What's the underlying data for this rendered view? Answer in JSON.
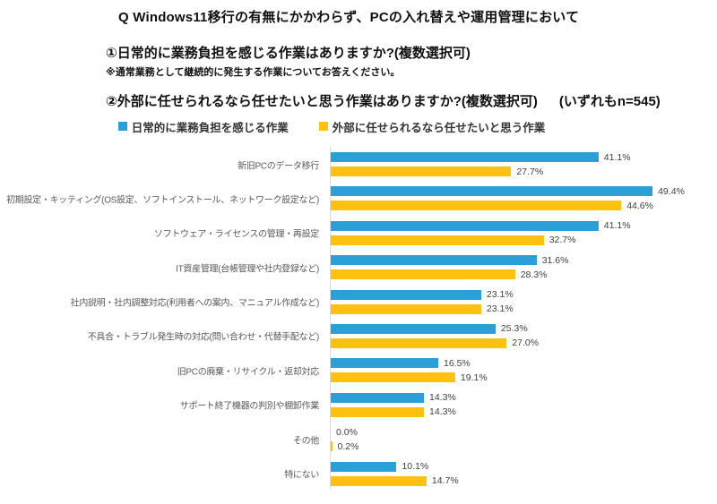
{
  "header": {
    "title": "Q Windows11移行の有無にかかわらず、PCの入れ替えや運用管理において",
    "question1": "①日常的に業務負担を感じる作業はありますか?(複数選択可)",
    "question1_note": "※通常業務として継続的に発生する作業についてお答えください。",
    "question2": "②外部に任せられるなら任せたいと思う作業はありますか?(複数選択可)",
    "sample_note": "(いずれもn=545)"
  },
  "colors": {
    "series1": "#2B9FD8",
    "series2": "#FFC110",
    "axis": "#D9D9D9",
    "category_label": "#595959",
    "value_label": "#404040"
  },
  "chart_data": {
    "type": "bar",
    "orientation": "horizontal",
    "unit": "%",
    "xlim": [
      0,
      55
    ],
    "grid": false,
    "legend_position": "top",
    "categories": [
      "新旧PCのデータ移行",
      "初期設定・キッティング(OS設定、ソフトインストール、ネットワーク設定など)",
      "ソフトウェア・ライセンスの管理・再設定",
      "IT資産管理(台帳管理や社内登録など)",
      "社内説明・社内調整対応(利用者への案内、マニュアル作成など)",
      "不具合・トラブル発生時の対応(問い合わせ・代替手配など)",
      "旧PCの廃棄・リサイクル・返却対応",
      "サポート終了機器の判別や棚卸作業",
      "その他",
      "特にない"
    ],
    "series": [
      {
        "name": "日常的に業務負担を感じる作業",
        "color": "#2B9FD8",
        "values": [
          41.1,
          49.4,
          41.1,
          31.6,
          23.1,
          25.3,
          16.5,
          14.3,
          0.0,
          10.1
        ]
      },
      {
        "name": "外部に任せられるなら任せたいと思う作業",
        "color": "#FFC110",
        "values": [
          27.7,
          44.6,
          32.7,
          28.3,
          23.1,
          27.0,
          19.1,
          14.3,
          0.2,
          14.7
        ]
      }
    ]
  }
}
